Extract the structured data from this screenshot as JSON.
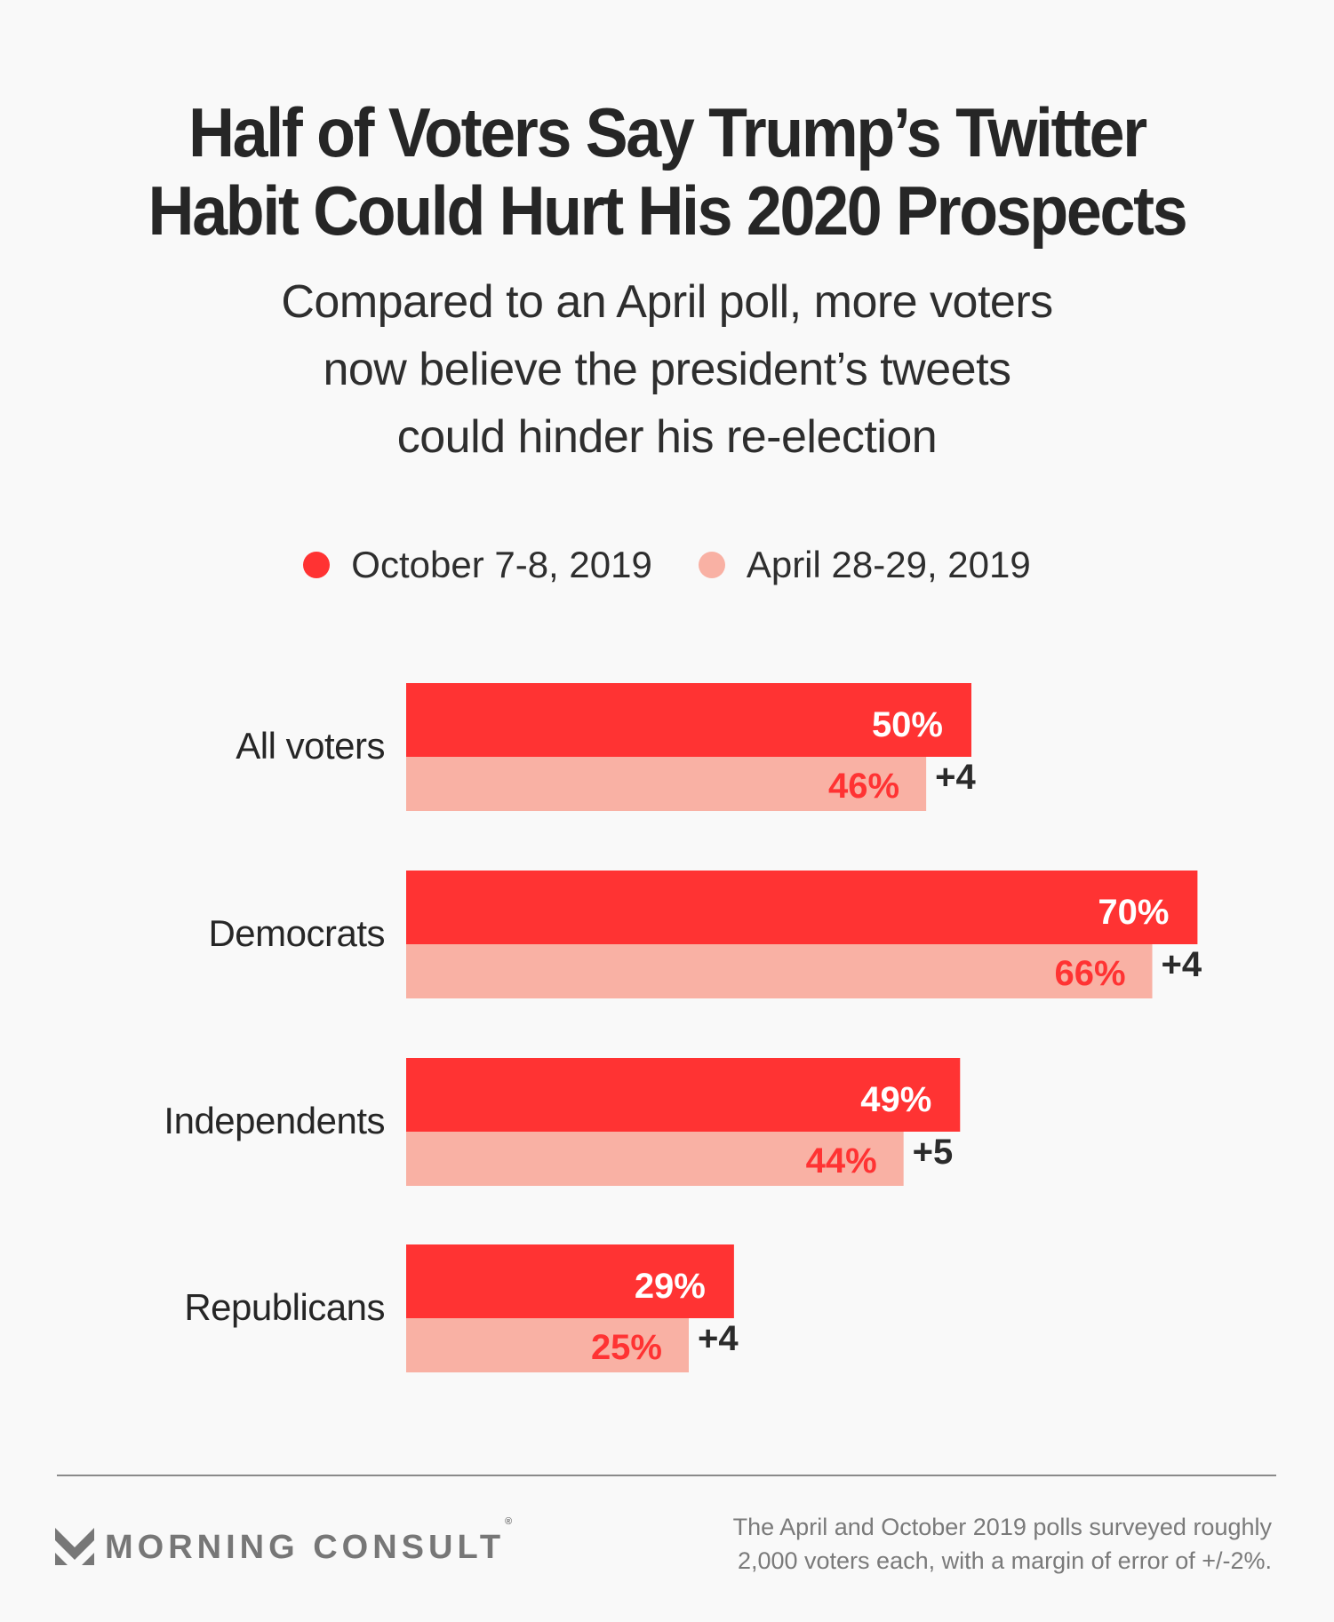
{
  "title_lines": [
    "Half of Voters Say Trump’s Twitter",
    "Habit Could Hurt His 2020 Prospects"
  ],
  "subtitle_lines": [
    "Compared to an April poll, more voters",
    "now believe the president’s tweets",
    "could hinder his re-election"
  ],
  "colors": {
    "october": "#ff3333",
    "april": "#f9b1a4",
    "april_label": "#ff3333",
    "october_label": "#ffffff",
    "change_label": "#2b2b2b"
  },
  "legend": [
    {
      "label": "October 7-8, 2019",
      "color": "#ff3333"
    },
    {
      "label": "April 28-29, 2019",
      "color": "#f9b1a4"
    }
  ],
  "chart_data": {
    "type": "bar",
    "orientation": "horizontal",
    "title": "Half of Voters Say Trump’s Twitter Habit Could Hurt His 2020 Prospects",
    "subtitle": "Compared to an April poll, more voters now believe the president’s tweets could hinder his re-election",
    "categories": [
      "All voters",
      "Democrats",
      "Independents",
      "Republicans"
    ],
    "series": [
      {
        "name": "October 7-8, 2019",
        "values": [
          50,
          70,
          49,
          29
        ],
        "labels": [
          "50%",
          "70%",
          "49%",
          "29%"
        ]
      },
      {
        "name": "April 28-29, 2019",
        "values": [
          46,
          66,
          44,
          25
        ],
        "labels": [
          "46%",
          "66%",
          "44%",
          "25%"
        ]
      }
    ],
    "changes": [
      "+4",
      "+4",
      "+5",
      "+4"
    ],
    "xlabel": "",
    "ylabel": "",
    "xlim": [
      0,
      100
    ],
    "grid": false,
    "legend_position": "top-center"
  },
  "footer": {
    "brand": "MORNING CONSULT",
    "registered_mark": "®",
    "note_lines": [
      "The April and October 2019 polls surveyed roughly",
      "2,000 voters each, with a margin of error of +/-2%."
    ]
  }
}
